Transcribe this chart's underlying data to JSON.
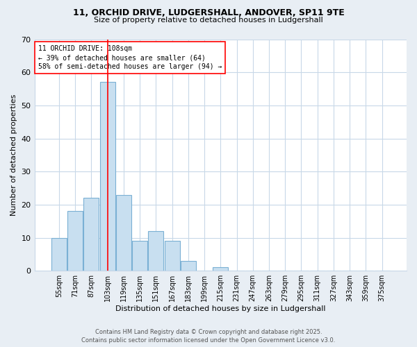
{
  "title_line1": "11, ORCHID DRIVE, LUDGERSHALL, ANDOVER, SP11 9TE",
  "title_line2": "Size of property relative to detached houses in Ludgershall",
  "bar_labels": [
    "55sqm",
    "71sqm",
    "87sqm",
    "103sqm",
    "119sqm",
    "135sqm",
    "151sqm",
    "167sqm",
    "183sqm",
    "199sqm",
    "215sqm",
    "231sqm",
    "247sqm",
    "263sqm",
    "279sqm",
    "295sqm",
    "311sqm",
    "327sqm",
    "343sqm",
    "359sqm",
    "375sqm"
  ],
  "bar_values": [
    10,
    18,
    22,
    57,
    23,
    9,
    12,
    9,
    3,
    0,
    1,
    0,
    0,
    0,
    0,
    0,
    0,
    0,
    0,
    0,
    0
  ],
  "bar_color": "#c8dff0",
  "bar_edgecolor": "#7ab0d4",
  "xlabel": "Distribution of detached houses by size in Ludgershall",
  "ylabel": "Number of detached properties",
  "ylim": [
    0,
    70
  ],
  "yticks": [
    0,
    10,
    20,
    30,
    40,
    50,
    60,
    70
  ],
  "red_line_x": 3,
  "annotation_text": "11 ORCHID DRIVE: 108sqm\n← 39% of detached houses are smaller (64)\n58% of semi-detached houses are larger (94) →",
  "footer_line1": "Contains HM Land Registry data © Crown copyright and database right 2025.",
  "footer_line2": "Contains public sector information licensed under the Open Government Licence v3.0.",
  "bg_color": "#e8eef4",
  "plot_bg_color": "#ffffff",
  "grid_color": "#c8d8e8",
  "title_fontsize": 9,
  "subtitle_fontsize": 8,
  "xlabel_fontsize": 8,
  "ylabel_fontsize": 8,
  "tick_fontsize": 7,
  "annot_fontsize": 7,
  "footer_fontsize": 6
}
